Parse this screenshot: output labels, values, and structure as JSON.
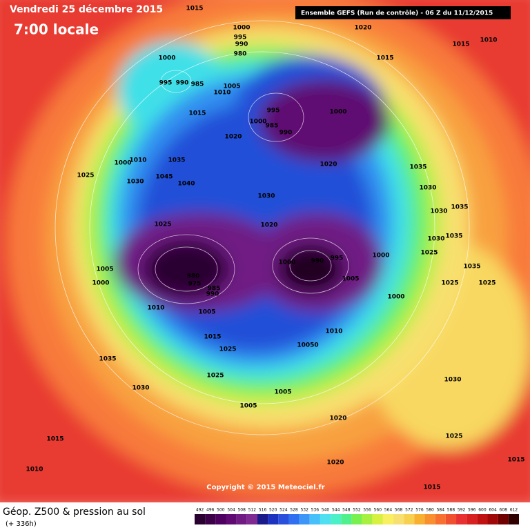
{
  "header": {
    "date": "Vendredi 25 décembre 2015",
    "time": "7:00 locale",
    "model": "Ensemble GEFS  (Run de contrôle)  -  06 Z du 11/12/2015"
  },
  "copyright": "Copyright © 2015 Meteociel.fr",
  "footer": {
    "title": "Géop. Z500 & pression au sol",
    "lead_time": "(+ 336h)"
  },
  "legend": {
    "values": [
      492,
      496,
      500,
      504,
      508,
      512,
      516,
      520,
      524,
      528,
      532,
      536,
      540,
      544,
      548,
      552,
      556,
      560,
      564,
      568,
      572,
      576,
      580,
      584,
      588,
      592,
      596,
      600,
      604,
      608,
      612
    ],
    "colors": [
      "#2a0030",
      "#3b0048",
      "#4d0060",
      "#5e0a72",
      "#701a84",
      "#7f2a92",
      "#1a1a8a",
      "#1e32c0",
      "#2850dc",
      "#3070f0",
      "#3c96f8",
      "#46c0f8",
      "#4ee0f0",
      "#4cf0c8",
      "#50f08c",
      "#78f050",
      "#a8f040",
      "#d8f040",
      "#f8f060",
      "#f8e070",
      "#f8d050",
      "#f8b030",
      "#f89030",
      "#f87030",
      "#f05030",
      "#e83030",
      "#d82020",
      "#c01010",
      "#a00808",
      "#700000",
      "#300000"
    ]
  },
  "pressure_labels": [
    1015,
    1020,
    1000,
    995,
    990,
    980,
    1015,
    1010,
    1015,
    1000,
    995,
    990,
    985,
    1005,
    1010,
    1015,
    995,
    1000,
    1000,
    985,
    990,
    1020,
    1035,
    1010,
    1000,
    1020,
    1035,
    1025,
    1045,
    1030,
    1040,
    1030,
    1030,
    1035,
    1030,
    1025,
    1020,
    1035,
    1030,
    1025,
    1000,
    1000,
    990,
    995,
    1035,
    1005,
    980,
    1000,
    975,
    1005,
    1025,
    1025,
    985,
    990,
    1000,
    1010,
    1005,
    1010,
    1015,
    10050,
    1025,
    1035,
    1025,
    1030,
    1030,
    1005,
    1005,
    1020,
    1015,
    1025,
    1010,
    1020,
    1015,
    1015
  ]
}
